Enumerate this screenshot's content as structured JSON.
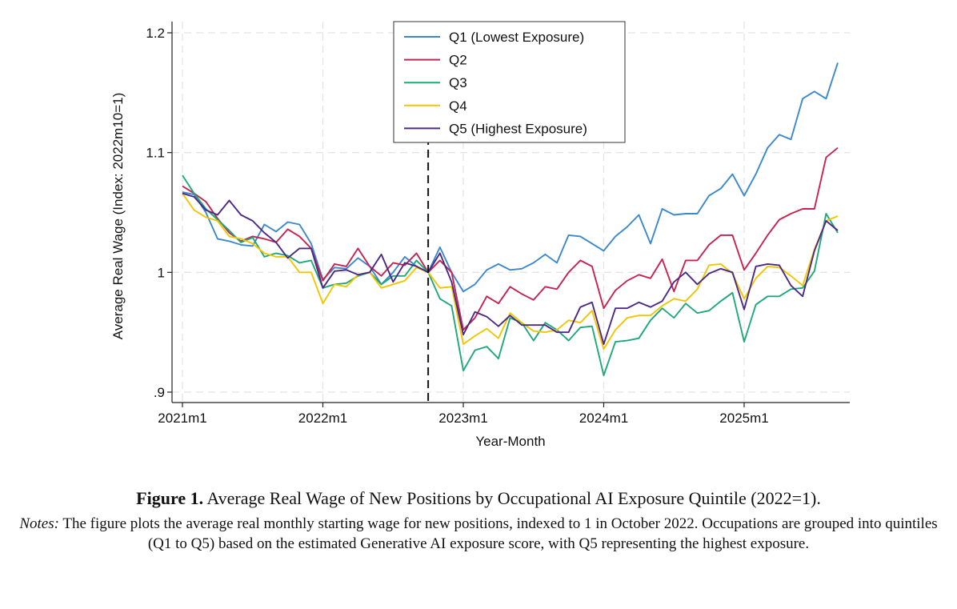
{
  "chart_data": {
    "type": "line",
    "title": "",
    "xlabel": "Year-Month",
    "ylabel": "Average Real Wage (Index: 2022m10=1)",
    "x_start": "2021m1",
    "x_ticks": [
      {
        "label": "2021m1",
        "value": 0
      },
      {
        "label": "2022m1",
        "value": 12
      },
      {
        "label": "2023m1",
        "value": 24
      },
      {
        "label": "2024m1",
        "value": 36
      },
      {
        "label": "2025m1",
        "value": 48
      }
    ],
    "y_ticks": [
      {
        "label": ".9",
        "value": 0.9
      },
      {
        "label": "1",
        "value": 1.0
      },
      {
        "label": "1.1",
        "value": 1.1
      },
      {
        "label": "1.2",
        "value": 1.2
      }
    ],
    "xlim": [
      0,
      57
    ],
    "ylim": [
      0.9,
      1.2
    ],
    "reference_line_x": 21,
    "grid": true,
    "legend_position": "top",
    "series": [
      {
        "name": "Q1 (Lowest Exposure)",
        "color": "#3b88d0",
        "values": [
          1.067,
          1.065,
          1.05,
          1.028,
          1.026,
          1.023,
          1.022,
          1.04,
          1.034,
          1.042,
          1.04,
          1.024,
          0.994,
          1.004,
          1.003,
          1.012,
          1.005,
          0.99,
          1.0,
          1.013,
          1.005,
          1.0,
          1.021,
          1.0,
          0.984,
          0.99,
          1.002,
          1.007,
          1.002,
          1.003,
          1.008,
          1.015,
          1.008,
          1.031,
          1.03,
          1.024,
          1.018,
          1.03,
          1.038,
          1.048,
          1.024,
          1.053,
          1.048,
          1.049,
          1.049,
          1.064,
          1.07,
          1.082,
          1.064,
          1.082,
          1.104,
          1.115,
          1.111,
          1.145,
          1.151,
          1.145,
          1.175
        ]
      },
      {
        "name": "Q2",
        "color": "#c8234f",
        "values": [
          1.072,
          1.066,
          1.059,
          1.045,
          1.033,
          1.026,
          1.03,
          1.028,
          1.025,
          1.036,
          1.03,
          1.02,
          0.993,
          1.007,
          1.005,
          1.02,
          1.005,
          0.997,
          1.008,
          1.006,
          1.016,
          1.0,
          1.01,
          1.0,
          0.952,
          0.962,
          0.98,
          0.974,
          0.988,
          0.982,
          0.977,
          0.988,
          0.986,
          1.0,
          1.01,
          1.005,
          0.97,
          0.985,
          0.993,
          0.998,
          0.995,
          1.011,
          0.984,
          1.01,
          1.01,
          1.023,
          1.031,
          1.031,
          1.002,
          1.016,
          1.031,
          1.044,
          1.049,
          1.053,
          1.053,
          1.096,
          1.104
        ]
      },
      {
        "name": "Q3",
        "color": "#1fa97a",
        "values": [
          1.081,
          1.066,
          1.053,
          1.044,
          1.035,
          1.025,
          1.029,
          1.013,
          1.016,
          1.014,
          1.008,
          1.01,
          0.987,
          0.99,
          0.991,
          0.997,
          1.0,
          0.99,
          0.997,
          0.997,
          1.01,
          1.0,
          0.978,
          0.972,
          0.918,
          0.935,
          0.938,
          0.928,
          0.962,
          0.958,
          0.943,
          0.958,
          0.952,
          0.943,
          0.954,
          0.955,
          0.914,
          0.942,
          0.943,
          0.945,
          0.96,
          0.97,
          0.962,
          0.974,
          0.966,
          0.968,
          0.976,
          0.983,
          0.942,
          0.973,
          0.98,
          0.98,
          0.986,
          0.987,
          1.001,
          1.049,
          1.033
        ]
      },
      {
        "name": "Q4",
        "color": "#f2c500",
        "values": [
          1.066,
          1.052,
          1.046,
          1.043,
          1.03,
          1.028,
          1.024,
          1.016,
          1.013,
          1.013,
          1.0,
          1.0,
          0.974,
          0.99,
          0.988,
          0.998,
          1.0,
          0.987,
          0.99,
          0.993,
          1.004,
          1.0,
          0.987,
          0.988,
          0.94,
          0.947,
          0.953,
          0.945,
          0.966,
          0.958,
          0.951,
          0.95,
          0.952,
          0.96,
          0.958,
          0.968,
          0.936,
          0.952,
          0.962,
          0.964,
          0.964,
          0.972,
          0.978,
          0.976,
          0.986,
          1.006,
          1.007,
          0.999,
          0.978,
          0.995,
          1.005,
          1.004,
          0.997,
          0.989,
          1.019,
          1.043,
          1.047
        ]
      },
      {
        "name": "Q5 (Highest Exposure)",
        "color": "#4b2a86",
        "values": [
          1.066,
          1.063,
          1.052,
          1.048,
          1.06,
          1.048,
          1.043,
          1.033,
          1.025,
          1.012,
          1.02,
          1.02,
          0.987,
          1.001,
          1.002,
          0.998,
          1.0,
          1.015,
          0.992,
          1.008,
          1.005,
          1.0,
          1.016,
          0.992,
          0.948,
          0.967,
          0.963,
          0.955,
          0.964,
          0.956,
          0.956,
          0.956,
          0.95,
          0.95,
          0.971,
          0.975,
          0.94,
          0.97,
          0.97,
          0.975,
          0.971,
          0.976,
          0.992,
          1.0,
          0.99,
          0.999,
          1.003,
          1.0,
          0.969,
          1.005,
          1.007,
          1.006,
          0.989,
          0.98,
          1.018,
          1.043,
          1.035
        ]
      }
    ]
  },
  "caption": {
    "label": "Figure 1.",
    "title": "Average Real Wage of New Positions by Occupational AI Exposure Quintile (2022=1).",
    "notes_label": "Notes:",
    "notes_text": "The figure plots the average real monthly starting wage for new positions, indexed to 1 in October 2022. Occupations are grouped into quintiles (Q1 to Q5) based on the estimated Generative AI exposure score, with Q5 representing the highest exposure."
  }
}
